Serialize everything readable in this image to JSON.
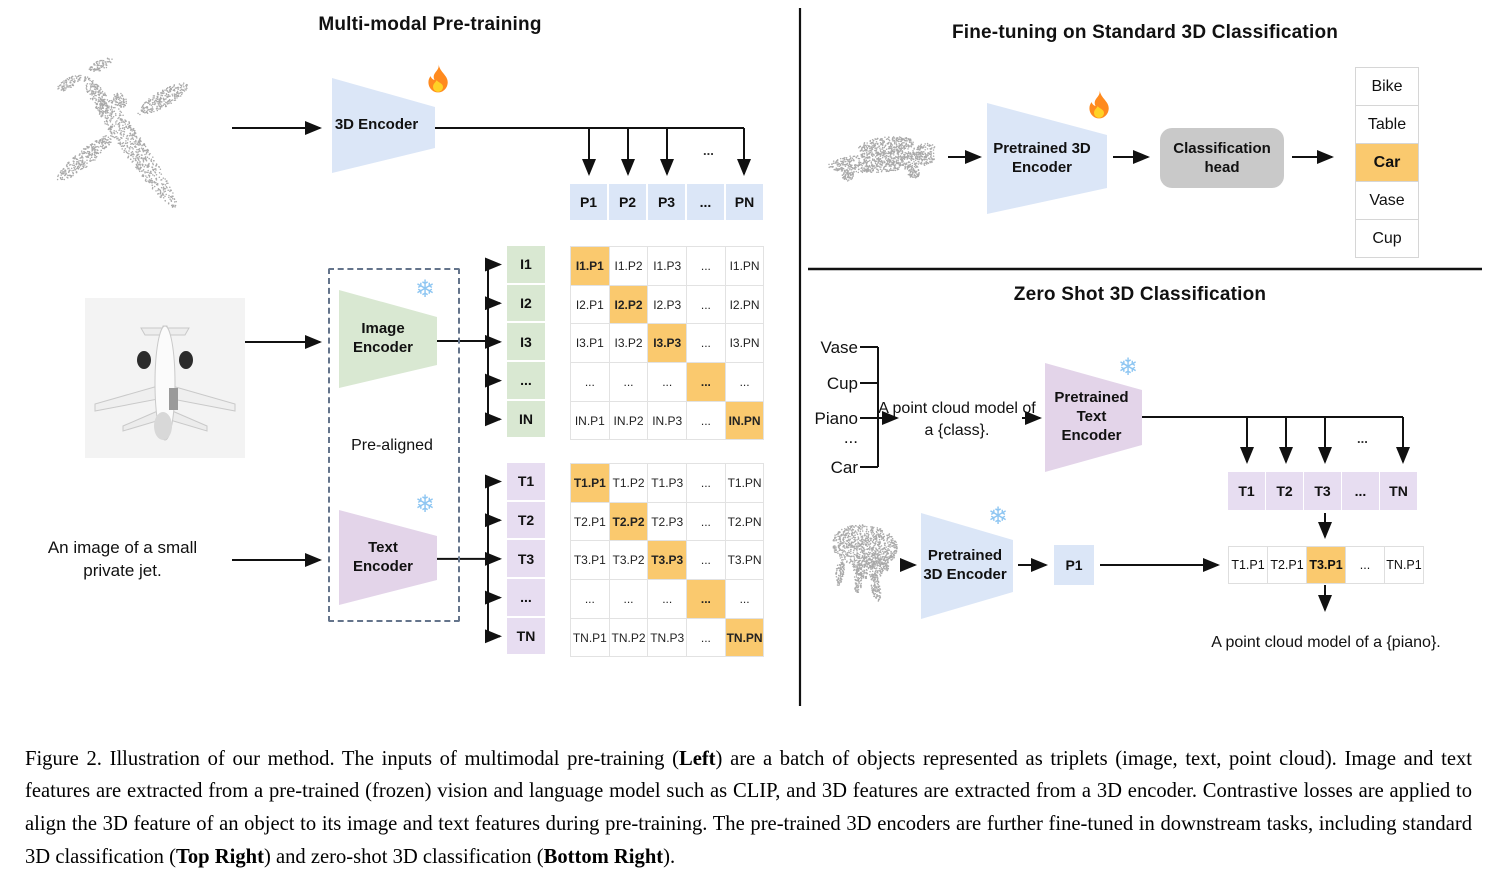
{
  "left": {
    "title": "Multi-modal Pre-training",
    "encoder_3d_label": "3D Encoder",
    "image_encoder_label": "Image Encoder",
    "text_encoder_label": "Text Encoder",
    "pre_aligned_label": "Pre-aligned",
    "text_input": "An image of a small private jet.",
    "p_row": [
      "P1",
      "P2",
      "P3",
      "...",
      "PN"
    ],
    "i_labels": [
      "I1",
      "I2",
      "I3",
      "...",
      "IN"
    ],
    "i_matrix": [
      [
        "I1.P1",
        "I1.P2",
        "I1.P3",
        "...",
        "I1.PN"
      ],
      [
        "I2.P1",
        "I2.P2",
        "I2.P3",
        "...",
        "I2.PN"
      ],
      [
        "I3.P1",
        "I3.P2",
        "I3.P3",
        "...",
        "I3.PN"
      ],
      [
        "...",
        "...",
        "...",
        "...",
        "..."
      ],
      [
        "IN.P1",
        "IN.P2",
        "IN.P3",
        "...",
        "IN.PN"
      ]
    ],
    "t_labels": [
      "T1",
      "T2",
      "T3",
      "...",
      "TN"
    ],
    "t_matrix": [
      [
        "T1.P1",
        "T1.P2",
        "T1.P3",
        "...",
        "T1.PN"
      ],
      [
        "T2.P1",
        "T2.P2",
        "T2.P3",
        "...",
        "T2.PN"
      ],
      [
        "T3.P1",
        "T3.P2",
        "T3.P3",
        "...",
        "T3.PN"
      ],
      [
        "...",
        "...",
        "...",
        "...",
        "..."
      ],
      [
        "TN.P1",
        "TN.P2",
        "TN.P3",
        "...",
        "TN.PN"
      ]
    ],
    "ellipsis": "..."
  },
  "top_right": {
    "title": "Fine-tuning on Standard 3D Classification",
    "encoder_label": "Pretrained 3D Encoder",
    "head_label": "Classification head",
    "classes": [
      "Bike",
      "Table",
      "Car",
      "Vase",
      "Cup"
    ],
    "highlight_class": "Car",
    "highlight_index": 2
  },
  "bottom_right": {
    "title": "Zero Shot 3D Classification",
    "class_words": [
      "Vase",
      "Cup",
      "Piano",
      "...",
      "Car"
    ],
    "prompt": "A point cloud model of a {class}.",
    "text_encoder_label": "Pretrained Text Encoder",
    "encoder_3d_label": "Pretrained 3D Encoder",
    "p_cell": "P1",
    "t_row": [
      "T1",
      "T2",
      "T3",
      "...",
      "TN"
    ],
    "tp_row": [
      "T1.P1",
      "T2.P1",
      "T3.P1",
      "...",
      "TN.P1"
    ],
    "tp_highlight_index": 2,
    "result": "A point cloud model of a {piano}.",
    "ellipsis": "..."
  },
  "icons": {
    "fire": "flame (trainable)",
    "snowflake_glyph": "❄"
  },
  "colors": {
    "blue": "#dbe6f7",
    "green": "#d9e8d2",
    "purple": "#e3d4e9",
    "purple_light": "#e7ddf1",
    "orange_highlight": "#fac96e",
    "head_gray": "#c9c9c9",
    "point_cloud_gray": "#a9a9a9"
  },
  "caption": {
    "segments": [
      {
        "text": "Figure 2. Illustration of our method. The inputs of multimodal pre-training (",
        "bold": false
      },
      {
        "text": "Left",
        "bold": true
      },
      {
        "text": ") are a batch of objects represented as triplets (image, text, point cloud). Image and text features are extracted from a pre-trained (frozen) vision and language model such as CLIP, and 3D features are extracted from a 3D encoder. Contrastive losses are applied to align the 3D feature of an object to its image and text features during pre-training. The pre-trained 3D encoders are further fine-tuned in downstream tasks, including standard 3D classification (",
        "bold": false
      },
      {
        "text": "Top Right",
        "bold": true
      },
      {
        "text": ") and zero-shot 3D classification (",
        "bold": false
      },
      {
        "text": "Bottom Right",
        "bold": true
      },
      {
        "text": ").",
        "bold": false
      }
    ]
  }
}
